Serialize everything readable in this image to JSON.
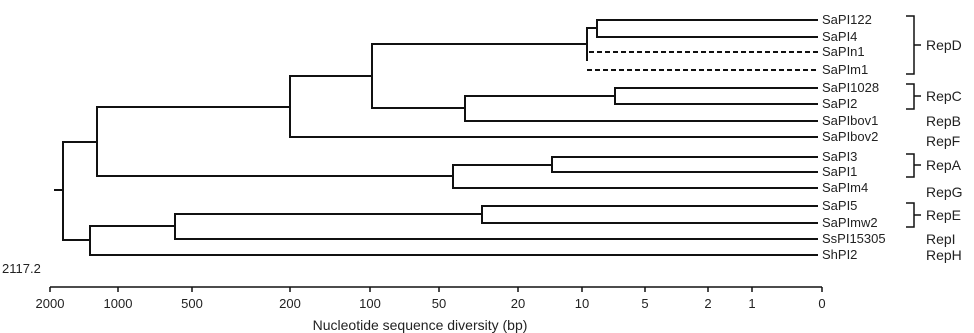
{
  "root_height_label": "2117.2",
  "x_axis": {
    "label": "Nucleotide sequence diversity (bp)",
    "ticks": [
      "2000",
      "1000",
      "500",
      "200",
      "100",
      "50",
      "20",
      "10",
      "5",
      "2",
      "1",
      "0"
    ]
  },
  "leaves": [
    "SaPI122",
    "SaPI4",
    "SaPIn1",
    "SaPIm1",
    "SaPI1028",
    "SaPI2",
    "SaPIbov1",
    "SaPIbov2",
    "SaPI3",
    "SaPI1",
    "SaPIm4",
    "SaPI5",
    "SaPImw2",
    "SsPI15305",
    "ShPI2"
  ],
  "groups": [
    "RepD",
    "RepC",
    "RepB",
    "RepF",
    "RepA",
    "RepG",
    "RepE",
    "RepI",
    "RepH"
  ]
}
